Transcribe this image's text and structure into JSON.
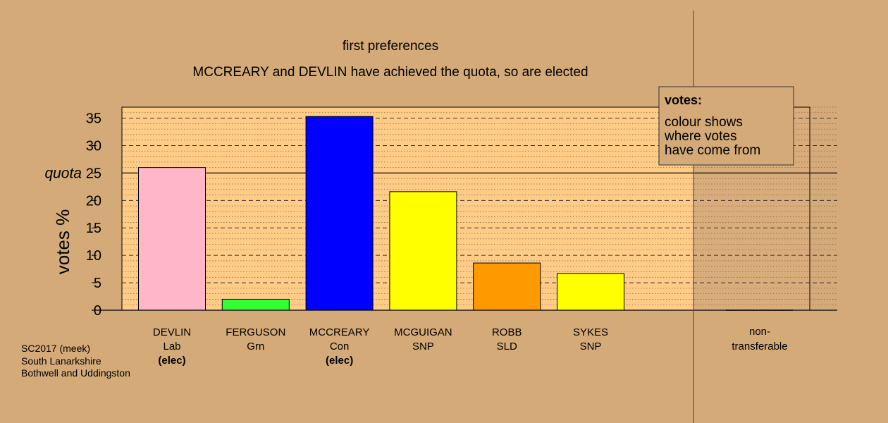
{
  "chart_data": {
    "type": "bar",
    "title": "first preferences",
    "subtitle": "MCCREARY and DEVLIN have achieved the quota, so are elected",
    "ylabel": "votes %",
    "ylim": [
      0,
      37
    ],
    "yticks": [
      0,
      5,
      10,
      15,
      20,
      25,
      30,
      35
    ],
    "quota": 25,
    "quota_label": "quota",
    "bars": [
      {
        "name": "DEVLIN",
        "party": "Lab",
        "status": "(elec)",
        "value": 26.0,
        "color": "#ffb6c8"
      },
      {
        "name": "FERGUSON",
        "party": "Grn",
        "status": "",
        "value": 2.0,
        "color": "#33ff33"
      },
      {
        "name": "MCCREARY",
        "party": "Con",
        "status": "(elec)",
        "value": 35.3,
        "color": "#0000ff"
      },
      {
        "name": "MCGUIGAN",
        "party": "SNP",
        "status": "",
        "value": 21.6,
        "color": "#ffff00"
      },
      {
        "name": "ROBB",
        "party": "SLD",
        "status": "",
        "value": 8.6,
        "color": "#ff9900"
      },
      {
        "name": "SYKES",
        "party": "SNP",
        "status": "",
        "value": 6.7,
        "color": "#ffff00"
      }
    ],
    "nontransferable": {
      "label_line1": "non-",
      "label_line2": "transferable",
      "value": 0
    },
    "legend": {
      "title": "votes:",
      "lines": [
        "colour shows",
        "where votes",
        "have come from"
      ]
    }
  },
  "footer": {
    "line1": "SC2017 (meek)",
    "line2": "South Lanarkshire",
    "line3": "Bothwell and Uddingston"
  },
  "colors": {
    "background": "#d4aa78",
    "plot_area": "#ffcc88",
    "nontransferable_area": "#d9ac7c",
    "legend_box": "#d4aa78"
  }
}
